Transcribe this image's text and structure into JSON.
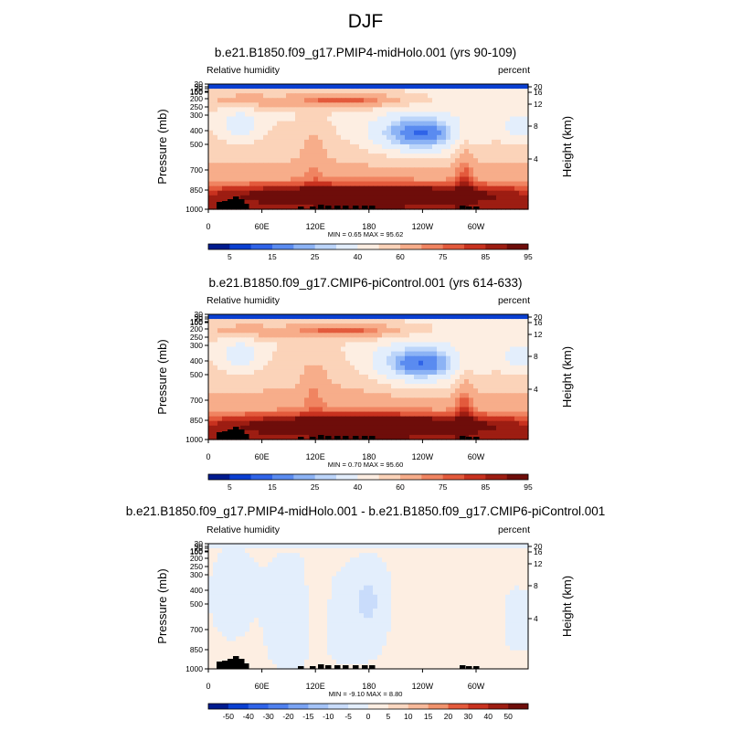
{
  "page": {
    "title": "DJF"
  },
  "chart_data": [
    {
      "type": "heatmap",
      "title": "b.e21.B1850.f09_g17.PMIP4-midHolo.001 (yrs 90-109)",
      "left_label": "Relative humidity",
      "right_label": "percent",
      "ylabel": "Pressure (mb)",
      "ylabel_right": "Height (km)",
      "x_ticks": [
        "0",
        "60E",
        "120E",
        "180",
        "120W",
        "60W"
      ],
      "y_ticks": [
        "1000",
        "850",
        "700",
        "500",
        "400",
        "300",
        "250",
        "200",
        "150",
        "100",
        "70",
        "50",
        "30"
      ],
      "y_right_ticks": [
        "20",
        "16",
        "12",
        "8",
        "4"
      ],
      "stats": "MIN =   0.65  MAX =  95.62",
      "colorbar": {
        "labels": [
          "5",
          "15",
          "25",
          "40",
          "60",
          "75",
          "85",
          "95"
        ],
        "colors": [
          "#001b8f",
          "#0a3fd1",
          "#2f63e8",
          "#5a8bf0",
          "#8cb3f5",
          "#bcd5fa",
          "#e3eefc",
          "#fdeee2",
          "#fbd3b9",
          "#f7ad8a",
          "#f08461",
          "#e35a3c",
          "#c8321f",
          "#9d1d12",
          "#6e0d0a"
        ]
      },
      "x": [
        "0",
        "60E",
        "120E",
        "180",
        "120W",
        "60W"
      ],
      "series": [],
      "ylim": [
        1000,
        30
      ]
    },
    {
      "type": "heatmap",
      "title": "b.e21.B1850.f09_g17.CMIP6-piControl.001 (yrs 614-633)",
      "left_label": "Relative humidity",
      "right_label": "percent",
      "ylabel": "Pressure (mb)",
      "ylabel_right": "Height (km)",
      "x_ticks": [
        "0",
        "60E",
        "120E",
        "180",
        "120W",
        "60W"
      ],
      "y_ticks": [
        "1000",
        "850",
        "700",
        "500",
        "400",
        "300",
        "250",
        "200",
        "150",
        "100",
        "70",
        "50",
        "30"
      ],
      "y_right_ticks": [
        "20",
        "16",
        "12",
        "8",
        "4"
      ],
      "stats": "MIN =   0.70  MAX =  95.60",
      "colorbar": {
        "labels": [
          "5",
          "15",
          "25",
          "40",
          "60",
          "75",
          "85",
          "95"
        ],
        "colors": [
          "#001b8f",
          "#0a3fd1",
          "#2f63e8",
          "#5a8bf0",
          "#8cb3f5",
          "#bcd5fa",
          "#e3eefc",
          "#fdeee2",
          "#fbd3b9",
          "#f7ad8a",
          "#f08461",
          "#e35a3c",
          "#c8321f",
          "#9d1d12",
          "#6e0d0a"
        ]
      },
      "x": [
        "0",
        "60E",
        "120E",
        "180",
        "120W",
        "60W"
      ],
      "series": [],
      "ylim": [
        1000,
        30
      ]
    },
    {
      "type": "heatmap",
      "title": "b.e21.B1850.f09_g17.PMIP4-midHolo.001 - b.e21.B1850.f09_g17.CMIP6-piControl.001",
      "left_label": "Relative humidity",
      "right_label": "percent",
      "ylabel": "Pressure (mb)",
      "ylabel_right": "Height (km)",
      "x_ticks": [
        "0",
        "60E",
        "120E",
        "180",
        "120W",
        "60W"
      ],
      "y_ticks": [
        "1000",
        "850",
        "700",
        "500",
        "400",
        "300",
        "250",
        "200",
        "150",
        "100",
        "70",
        "50",
        "30"
      ],
      "y_right_ticks": [
        "20",
        "16",
        "12",
        "8",
        "4"
      ],
      "stats": "MIN =  -9.10  MAX =   8.80",
      "colorbar": {
        "labels": [
          "-50",
          "-40",
          "-30",
          "-20",
          "-15",
          "-10",
          "-5",
          "0",
          "5",
          "10",
          "15",
          "20",
          "30",
          "40",
          "50"
        ],
        "colors": [
          "#001b8f",
          "#0a3fd1",
          "#2f63e8",
          "#4f80ee",
          "#7aa3f3",
          "#a4c3f7",
          "#c9dcfb",
          "#e3eefc",
          "#fdeee2",
          "#fbd8c1",
          "#f7b99a",
          "#f0926c",
          "#e35a3c",
          "#c8321f",
          "#9d1d12",
          "#6e0d0a"
        ]
      },
      "x": [
        "0",
        "60E",
        "120E",
        "180",
        "120W",
        "60W"
      ],
      "series": [],
      "ylim": [
        1000,
        30
      ]
    }
  ]
}
